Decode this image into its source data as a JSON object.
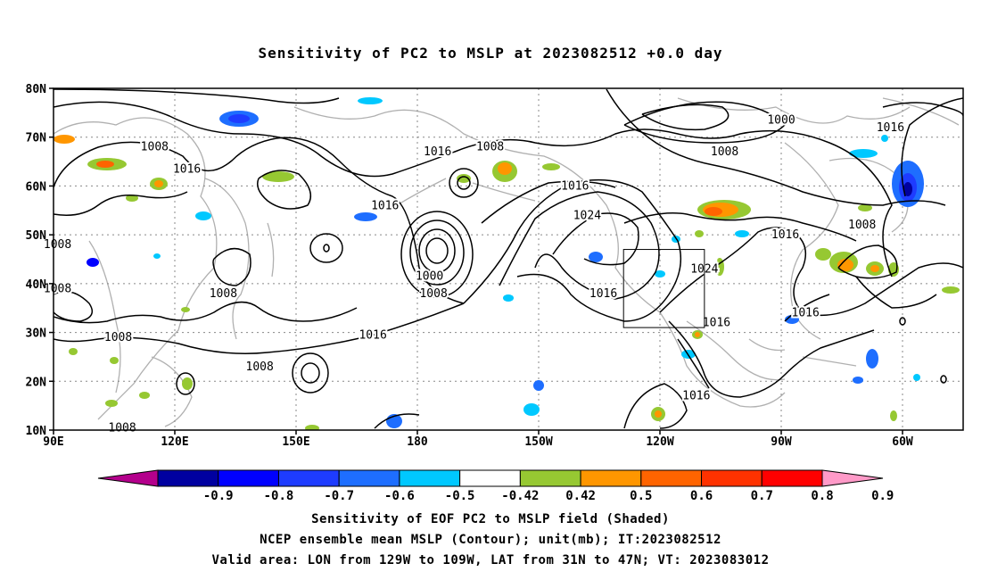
{
  "title": "Sensitivity of PC2 to MSLP at 2023082512 +0.0 day",
  "map": {
    "lat_ticks": [
      "80N",
      "70N",
      "60N",
      "50N",
      "40N",
      "30N",
      "20N",
      "10N"
    ],
    "lon_ticks": [
      "90E",
      "120E",
      "150E",
      "180",
      "150W",
      "120W",
      "90W",
      "60W"
    ],
    "contour_labels": [
      {
        "text": "1008",
        "lon": 115,
        "lat": 68
      },
      {
        "text": "1016",
        "lon": 123,
        "lat": 63.5
      },
      {
        "text": "1016",
        "lon": 172,
        "lat": 56
      },
      {
        "text": "1016",
        "lon": 185,
        "lat": 67
      },
      {
        "text": "1008",
        "lon": 198,
        "lat": 68
      },
      {
        "text": "1016",
        "lon": 219,
        "lat": 60
      },
      {
        "text": "1024",
        "lon": 222,
        "lat": 54
      },
      {
        "text": "1000",
        "lon": 270,
        "lat": 73.5
      },
      {
        "text": "1008",
        "lon": 256,
        "lat": 67
      },
      {
        "text": "1016",
        "lon": 297,
        "lat": 72
      },
      {
        "text": "1008",
        "lon": 290,
        "lat": 52
      },
      {
        "text": "1016",
        "lon": 271,
        "lat": 50
      },
      {
        "text": "1024",
        "lon": 251,
        "lat": 43
      },
      {
        "text": "1016",
        "lon": 226,
        "lat": 38
      },
      {
        "text": "1000",
        "lon": 183,
        "lat": 41.5
      },
      {
        "text": "1008",
        "lon": 184,
        "lat": 38
      },
      {
        "text": "1008",
        "lon": 91,
        "lat": 48
      },
      {
        "text": "1008",
        "lon": 91,
        "lat": 39
      },
      {
        "text": "1008",
        "lon": 132,
        "lat": 38
      },
      {
        "text": "1008",
        "lon": 106,
        "lat": 29
      },
      {
        "text": "1016",
        "lon": 169,
        "lat": 29.5
      },
      {
        "text": "1008",
        "lon": 141,
        "lat": 23
      },
      {
        "text": "1016",
        "lon": 254,
        "lat": 32
      },
      {
        "text": "1016",
        "lon": 276,
        "lat": 34
      },
      {
        "text": "1016",
        "lon": 249,
        "lat": 17
      },
      {
        "text": "1008",
        "lon": 107,
        "lat": 10.5
      }
    ],
    "valid_box": {
      "lon_min": 231,
      "lon_max": 251,
      "lat_min": 31,
      "lat_max": 47
    }
  },
  "colorbar": {
    "labels": [
      "-0.9",
      "-0.8",
      "-0.7",
      "-0.6",
      "-0.5",
      "-0.42",
      "0.42",
      "0.5",
      "0.6",
      "0.7",
      "0.8",
      "0.9"
    ],
    "colors": [
      "#b4008c",
      "#0000a0",
      "#0000ff",
      "#1e3cff",
      "#1e6eff",
      "#00c8ff",
      "#ffffff",
      "#96c832",
      "#ff9600",
      "#ff6400",
      "#ff3200",
      "#ff0000",
      "#ff9ac8"
    ]
  },
  "captions": [
    "Sensitivity of EOF PC2 to MSLP field (Shaded)",
    "NCEP ensemble mean MSLP (Contour); unit(mb); IT:2023082512",
    "Valid area: LON from 129W to 109W, LAT from 31N to 47N; VT: 2023083012"
  ]
}
